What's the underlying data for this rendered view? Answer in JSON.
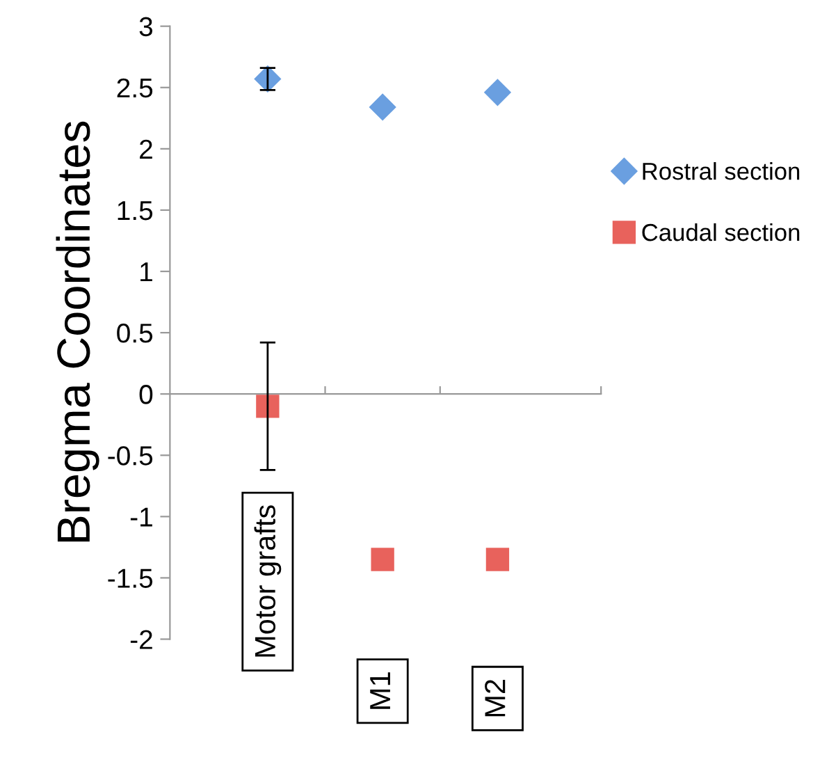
{
  "chart_data": {
    "type": "scatter",
    "ylabel": "Bregma Coordinates",
    "categories": [
      "Motor grafts",
      "M1",
      "M2"
    ],
    "series": [
      {
        "name": "Rostral section",
        "color": "#6a9fe0",
        "marker": "diamond",
        "values": [
          2.57,
          2.34,
          2.46
        ],
        "errors": [
          0.09,
          null,
          null
        ]
      },
      {
        "name": "Caudal section",
        "color": "#e8625c",
        "marker": "square",
        "values": [
          -0.1,
          -1.35,
          -1.35
        ],
        "errors": [
          0.52,
          null,
          null
        ]
      }
    ],
    "ylim": [
      -2,
      3
    ],
    "yticks": [
      -2,
      -1.5,
      -1,
      -0.5,
      0,
      0.5,
      1,
      1.5,
      2,
      2.5,
      3
    ],
    "legend": "right"
  }
}
